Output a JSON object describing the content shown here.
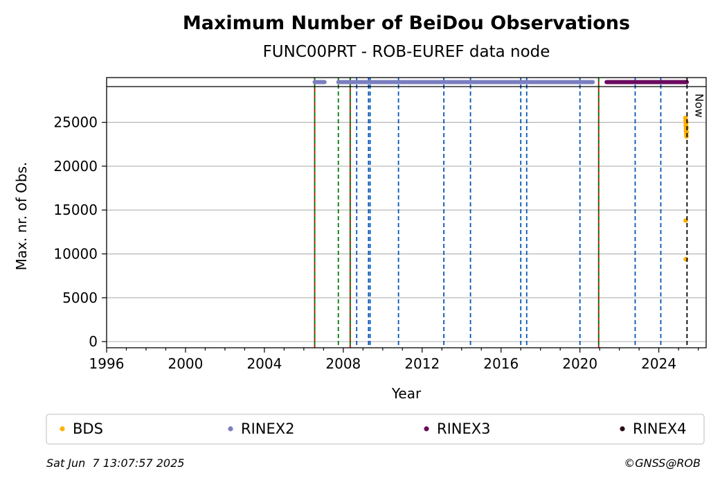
{
  "chart_data": {
    "type": "scatter",
    "title": "Maximum Number of BeiDou Observations",
    "subtitle": "FUNC00PRT - ROB-EUREF data node",
    "xlabel": "Year",
    "ylabel": "Max. nr. of Obs.",
    "xlim": [
      1996.0,
      2026.4
    ],
    "ylim": [
      -700,
      30100
    ],
    "x_ticks": [
      1996,
      2000,
      2004,
      2008,
      2012,
      2016,
      2020,
      2024
    ],
    "y_ticks": [
      0,
      5000,
      10000,
      15000,
      20000,
      25000
    ],
    "grid": "y",
    "now_x": 2025.43,
    "now_label": "Now",
    "series": [
      {
        "name": "BDS",
        "color": "#ffb000",
        "points": [
          [
            2025.35,
            25500
          ],
          [
            2025.36,
            25200
          ],
          [
            2025.37,
            24900
          ],
          [
            2025.37,
            24600
          ],
          [
            2025.38,
            24300
          ],
          [
            2025.38,
            24000
          ],
          [
            2025.39,
            23700
          ],
          [
            2025.4,
            23400
          ],
          [
            2025.4,
            25000
          ],
          [
            2025.41,
            24400
          ],
          [
            2025.41,
            23900
          ],
          [
            2025.36,
            13800
          ],
          [
            2025.37,
            9400
          ]
        ]
      },
      {
        "name": "RINEX2",
        "color": "#7b7fbf",
        "ranges": [
          [
            2006.55,
            2007.05
          ],
          [
            2007.75,
            2020.65
          ]
        ]
      },
      {
        "name": "RINEX3",
        "color": "#6a0a5f",
        "ranges": [
          [
            2021.35,
            2025.42
          ]
        ]
      },
      {
        "name": "RINEX4",
        "color": "#2a0a1a",
        "ranges": []
      }
    ],
    "event_lines": [
      {
        "x": 2006.55,
        "color": "#c00000",
        "style": "solid"
      },
      {
        "x": 2006.55,
        "color": "#007a00",
        "style": "dashed"
      },
      {
        "x": 2007.75,
        "color": "#007a00",
        "style": "dashed"
      },
      {
        "x": 2008.35,
        "color": "#c00000",
        "style": "solid"
      },
      {
        "x": 2008.35,
        "color": "#007a00",
        "style": "dashed"
      },
      {
        "x": 2008.68,
        "color": "#0055b5",
        "style": "dashed"
      },
      {
        "x": 2009.28,
        "color": "#0055b5",
        "style": "dashed"
      },
      {
        "x": 2009.36,
        "color": "#0055b5",
        "style": "dashed"
      },
      {
        "x": 2010.8,
        "color": "#0055b5",
        "style": "dashed"
      },
      {
        "x": 2013.1,
        "color": "#0055b5",
        "style": "dashed"
      },
      {
        "x": 2014.45,
        "color": "#0055b5",
        "style": "dashed"
      },
      {
        "x": 2017.0,
        "color": "#0055b5",
        "style": "dashed"
      },
      {
        "x": 2017.3,
        "color": "#0055b5",
        "style": "dashed"
      },
      {
        "x": 2020.0,
        "color": "#0055b5",
        "style": "dashed"
      },
      {
        "x": 2020.95,
        "color": "#c00000",
        "style": "solid"
      },
      {
        "x": 2020.95,
        "color": "#007a00",
        "style": "dashed"
      },
      {
        "x": 2022.8,
        "color": "#0055b5",
        "style": "dashed"
      },
      {
        "x": 2024.1,
        "color": "#0055b5",
        "style": "dashed"
      }
    ]
  },
  "footer": {
    "timestamp": "Sat Jun  7 13:07:57 2025",
    "credit": "©GNSS@ROB"
  }
}
